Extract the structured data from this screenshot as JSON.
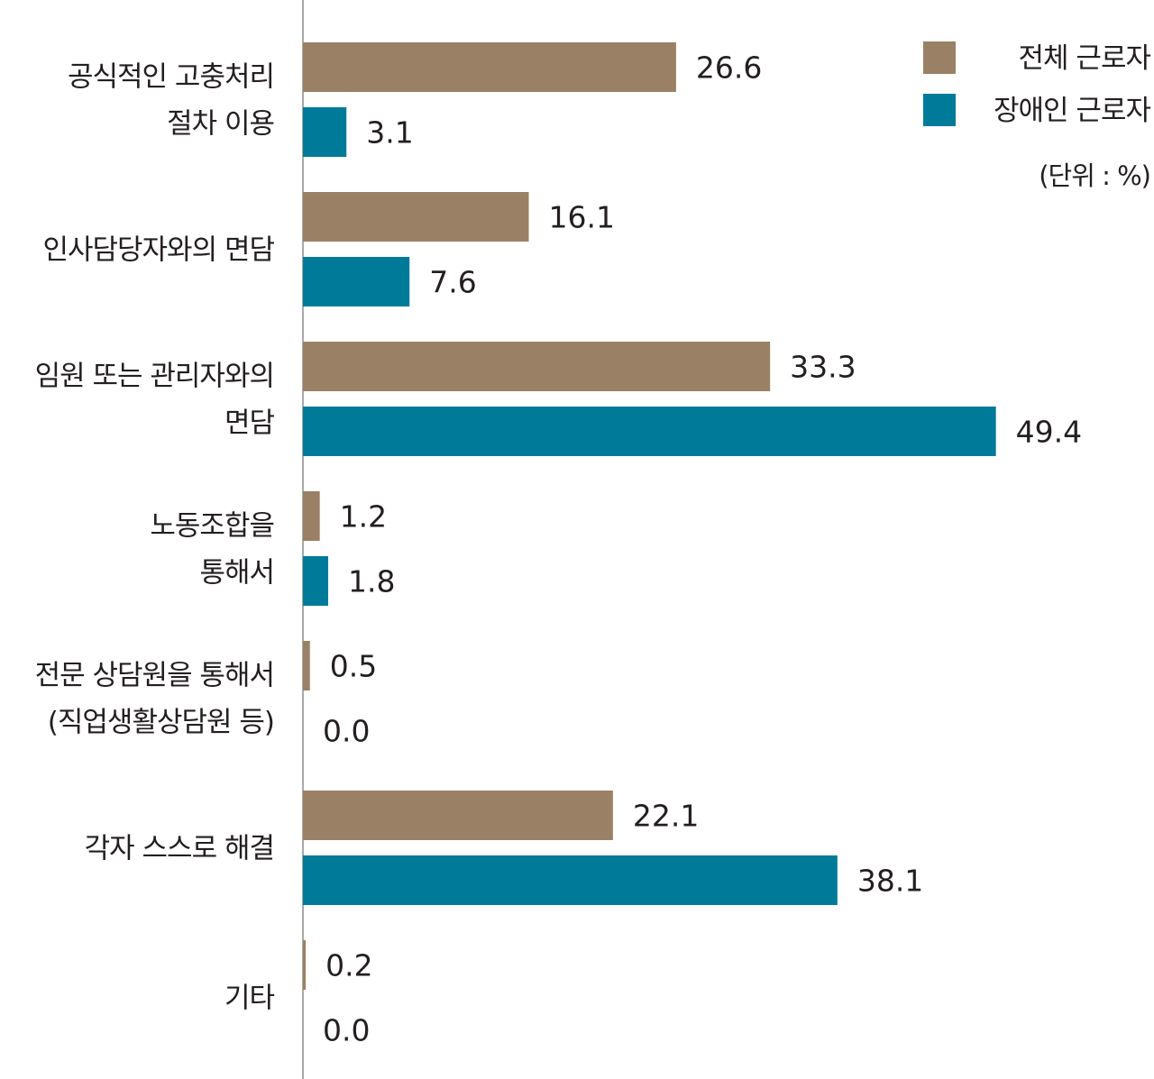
{
  "chart_data": {
    "type": "bar",
    "orientation": "horizontal",
    "unit": "(단위 : %)",
    "xlim": [
      0,
      55
    ],
    "grid": false,
    "legend_position": "top-right",
    "categories": [
      [
        "공식적인 고충처리",
        "절차 이용"
      ],
      [
        "인사담당자와의 면담"
      ],
      [
        "임원 또는 관리자와의",
        "면담"
      ],
      [
        "노동조합을",
        "통해서"
      ],
      [
        "전문 상담원을 통해서",
        "(직업생활상담원 등)"
      ],
      [
        "각자 스스로 해결"
      ],
      [
        "기타"
      ]
    ],
    "series": [
      {
        "name": "전체 근로자",
        "color": "#9a8165",
        "values": [
          26.6,
          16.1,
          33.3,
          1.2,
          0.5,
          22.1,
          0.2
        ]
      },
      {
        "name": "장애인 근로자",
        "color": "#007a99",
        "values": [
          3.1,
          7.6,
          49.4,
          1.8,
          0.0,
          38.1,
          0.0
        ]
      }
    ]
  }
}
